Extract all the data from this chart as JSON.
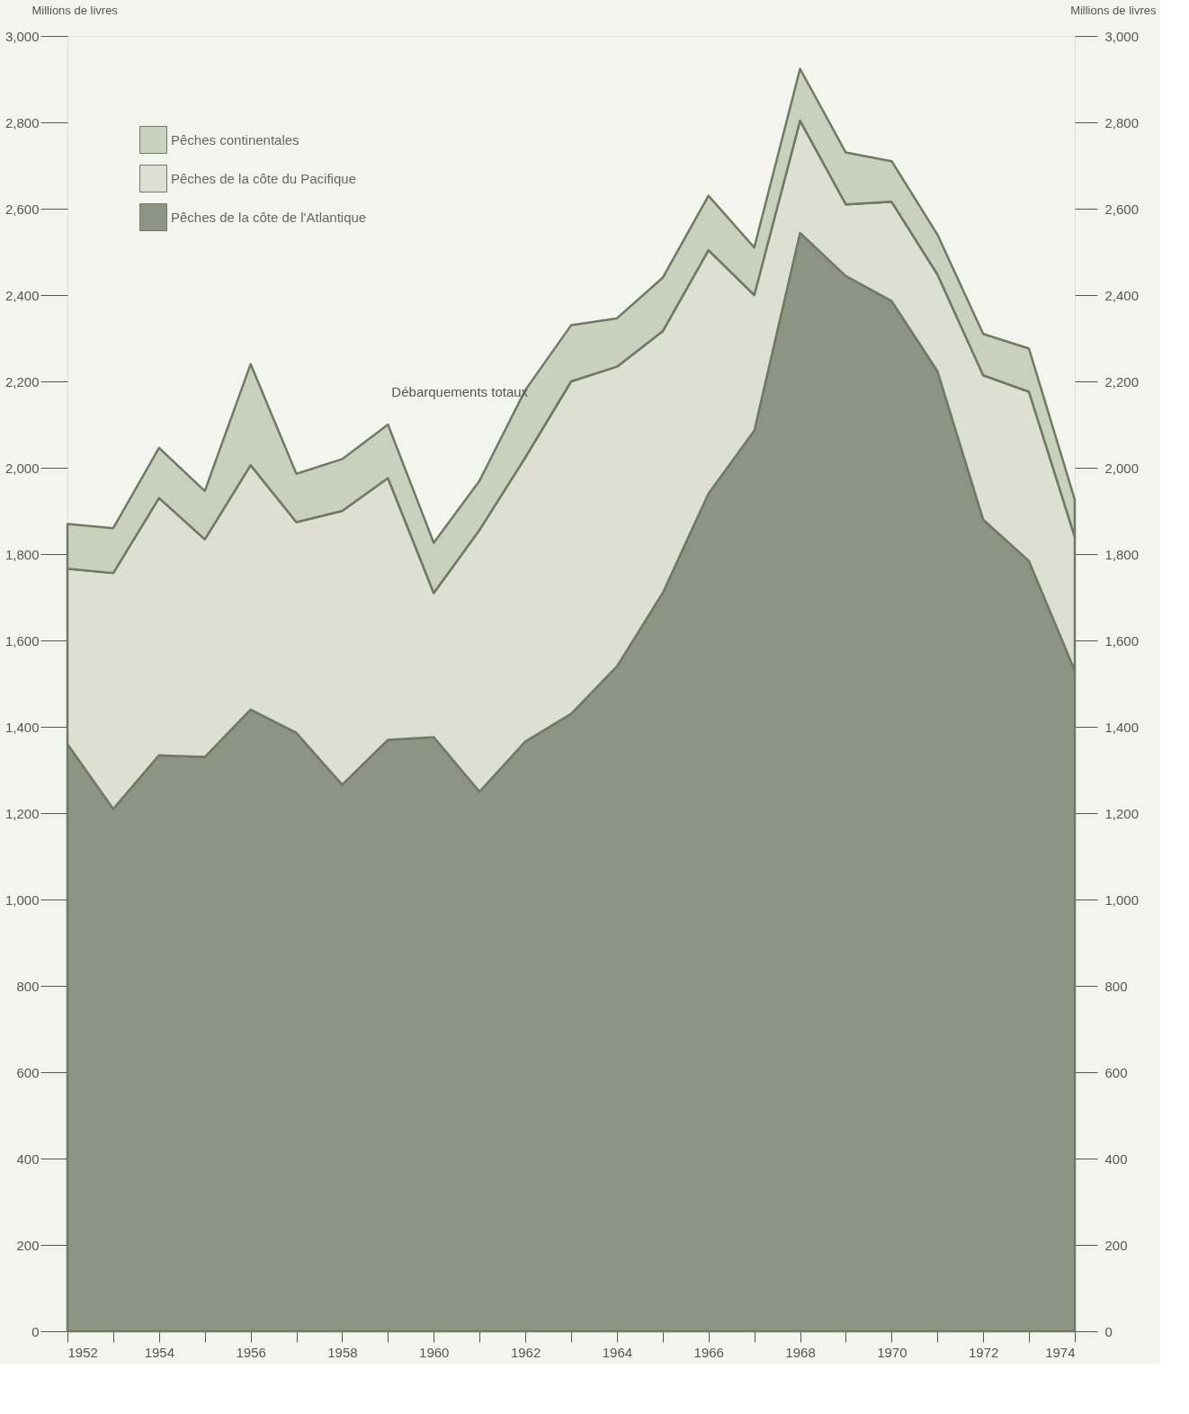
{
  "chart_data": {
    "type": "area",
    "stacked": true,
    "x": [
      1952,
      1953,
      1954,
      1955,
      1956,
      1957,
      1958,
      1959,
      1960,
      1961,
      1962,
      1963,
      1964,
      1965,
      1966,
      1967,
      1968,
      1969,
      1970,
      1971,
      1972,
      1973,
      1974
    ],
    "series": [
      {
        "name": "Pêches de la côte de l'Atlantique",
        "color": "#8e9484",
        "values": [
          1360,
          1210,
          1334,
          1330,
          1440,
          1386,
          1266,
          1370,
          1376,
          1250,
          1366,
          1430,
          1540,
          1710,
          1940,
          2086,
          2544,
          2444,
          2386,
          2224,
          1880,
          1784,
          1530
        ]
      },
      {
        "name": "Pêches de la côte du Pacifique",
        "color": "#dcdfd2",
        "values": [
          406,
          546,
          596,
          504,
          566,
          488,
          634,
          606,
          334,
          606,
          658,
          770,
          694,
          606,
          564,
          314,
          260,
          166,
          230,
          224,
          334,
          392,
          310
        ]
      },
      {
        "name": "Pêches continentales",
        "color": "#c9d0bd",
        "values": [
          104,
          104,
          116,
          112,
          234,
          112,
          120,
          124,
          116,
          114,
          156,
          130,
          112,
          124,
          126,
          110,
          120,
          120,
          94,
          92,
          96,
          100,
          86
        ]
      }
    ],
    "ylabel": "Millions de livres",
    "y2label": "Millions de livres",
    "xlim": [
      1952,
      1974
    ],
    "xticks": [
      1952,
      {
        "value": 1953,
        "label": null
      },
      1954,
      {
        "value": 1955,
        "label": null
      },
      1956,
      {
        "value": 1957,
        "label": null
      },
      1958,
      {
        "value": 1959,
        "label": null
      },
      1960,
      {
        "value": 1961,
        "label": null
      },
      1962,
      {
        "value": 1963,
        "label": null
      },
      1964,
      {
        "value": 1965,
        "label": null
      },
      1966,
      {
        "value": 1967,
        "label": null
      },
      1968,
      {
        "value": 1969,
        "label": null
      },
      1970,
      {
        "value": 1971,
        "label": null
      },
      1972,
      {
        "value": 1973,
        "label": null
      },
      1974
    ],
    "ylim": [
      0,
      3000
    ],
    "yticks": [
      0,
      200,
      400,
      600,
      800,
      {
        "value": 1000,
        "label": "1,000"
      },
      {
        "value": 1200,
        "label": "1,200"
      },
      {
        "value": 1400,
        "label": "1,400"
      },
      {
        "value": 1600,
        "label": "1,600"
      },
      {
        "value": 1800,
        "label": "1,800"
      },
      {
        "value": 2000,
        "label": "2,000"
      },
      {
        "value": 2200,
        "label": "2,200"
      },
      {
        "value": 2400,
        "label": "2,400"
      },
      {
        "value": 2600,
        "label": "2,600"
      },
      {
        "value": 2800,
        "label": "2,800"
      },
      {
        "value": 3000,
        "label": "3,000"
      }
    ],
    "y2lim": [
      0,
      3000
    ],
    "y2ticks": [
      0,
      200,
      400,
      600,
      800,
      {
        "value": 1000,
        "label": "1,000"
      },
      {
        "value": 1200,
        "label": "1,200"
      },
      {
        "value": 1400,
        "label": "1,400"
      },
      {
        "value": 1600,
        "label": "1,600"
      },
      {
        "value": 1800,
        "label": "1,800"
      },
      {
        "value": 2000,
        "label": "2,000"
      },
      {
        "value": 2200,
        "label": "2,200"
      },
      {
        "value": 2400,
        "label": "2,400"
      },
      {
        "value": 2600,
        "label": "2,600"
      },
      {
        "value": 2800,
        "label": "2,800"
      },
      {
        "value": 3000,
        "label": "3,000"
      }
    ],
    "annotations": [
      {
        "text": "Débarquements totaux",
        "x": 1959,
        "y": 2100
      }
    ],
    "legend": "top left",
    "grid": false
  }
}
